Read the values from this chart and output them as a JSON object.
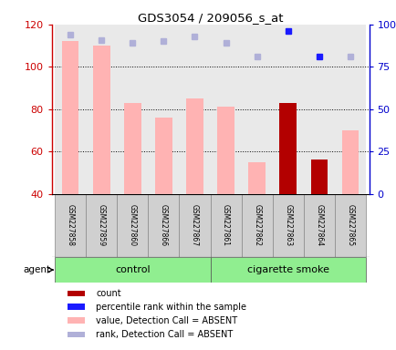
{
  "title": "GDS3054 / 209056_s_at",
  "samples": [
    "GSM227858",
    "GSM227859",
    "GSM227860",
    "GSM227866",
    "GSM227867",
    "GSM227861",
    "GSM227862",
    "GSM227863",
    "GSM227864",
    "GSM227865"
  ],
  "bar_values": [
    112,
    110,
    83,
    76,
    85,
    81,
    55,
    83,
    56,
    70
  ],
  "bar_colors": [
    "#ffb3b3",
    "#ffb3b3",
    "#ffb3b3",
    "#ffb3b3",
    "#ffb3b3",
    "#ffb3b3",
    "#ffb3b3",
    "#b30000",
    "#b30000",
    "#ffb3b3"
  ],
  "rank_values_pct": [
    94,
    91,
    89,
    90,
    93,
    89,
    81,
    96,
    81,
    81
  ],
  "rank_colors": [
    "#b0b0d8",
    "#b0b0d8",
    "#b0b0d8",
    "#b0b0d8",
    "#b0b0d8",
    "#b0b0d8",
    "#b0b0d8",
    "#1a1aff",
    "#1a1aff",
    "#b0b0d8"
  ],
  "ylim_left": [
    40,
    120
  ],
  "ylim_right": [
    0,
    100
  ],
  "yticks_left": [
    40,
    60,
    80,
    100,
    120
  ],
  "yticks_right": [
    0,
    25,
    50,
    75,
    100
  ],
  "ytick_labels_right": [
    "0",
    "25",
    "50",
    "75",
    "100%"
  ],
  "grid_ticks": [
    60,
    80,
    100
  ],
  "left_axis_color": "#cc0000",
  "right_axis_color": "#0000cc",
  "control_label": "control",
  "smoke_label": "cigarette smoke",
  "agent_label": "agent",
  "group_bg": "#90ee90",
  "sample_box_bg": "#d0d0d0",
  "legend_items": [
    {
      "color": "#b30000",
      "label": "count"
    },
    {
      "color": "#1a1aff",
      "label": "percentile rank within the sample"
    },
    {
      "color": "#ffb3b3",
      "label": "value, Detection Call = ABSENT"
    },
    {
      "color": "#b0b0d8",
      "label": "rank, Detection Call = ABSENT"
    }
  ]
}
